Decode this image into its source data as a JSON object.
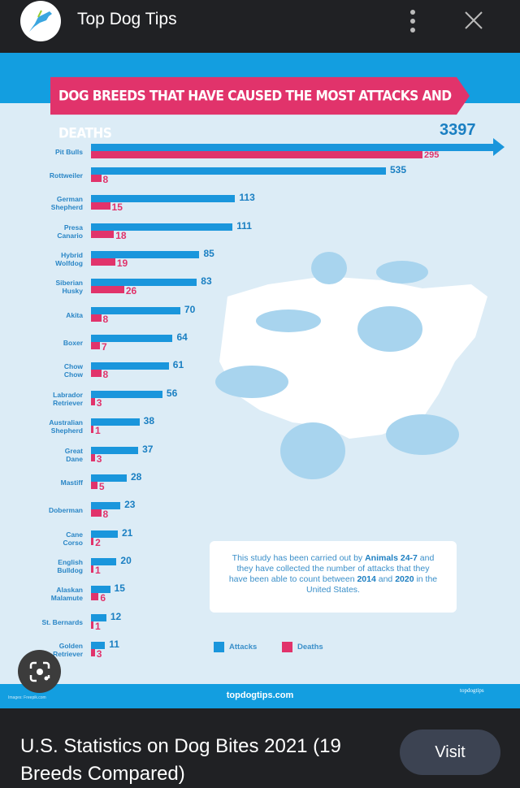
{
  "header": {
    "site_name": "Top Dog Tips",
    "more_icon": "more-vert-icon",
    "close_icon": "close-icon"
  },
  "chart_data": {
    "type": "bar",
    "orientation": "horizontal",
    "title": "DOG BREEDS THAT HAVE CAUSED THE MOST ATTACKS AND DEATHS",
    "categories": [
      "Pit Bulls",
      "Rottweiler",
      "German Shepherd",
      "Presa Canario",
      "Hybrid Wolfdog",
      "Siberian Husky",
      "Akita",
      "Boxer",
      "Chow Chow",
      "Labrador Retriever",
      "Australian Shepherd",
      "Great Dane",
      "Mastiff",
      "Doberman",
      "Cane Corso",
      "English Bulldog",
      "Alaskan Malamute",
      "St. Bernards",
      "Golden Retriever"
    ],
    "series": [
      {
        "name": "Attacks",
        "color": "#1a96dc",
        "values": [
          3397,
          535,
          113,
          111,
          85,
          83,
          70,
          64,
          61,
          56,
          38,
          37,
          28,
          23,
          21,
          20,
          15,
          12,
          11
        ]
      },
      {
        "name": "Deaths",
        "color": "#e1336b",
        "values": [
          295,
          8,
          15,
          18,
          19,
          26,
          8,
          7,
          8,
          3,
          1,
          3,
          5,
          8,
          2,
          1,
          6,
          1,
          3
        ]
      }
    ],
    "legend": "bottom-center",
    "grid": false
  },
  "note": {
    "p1": "This study has been carried out by ",
    "b1": "Animals 24-7",
    "p2": " and they have collected the number of attacks that they have been able to count between ",
    "b2": "2014",
    "p3": " and ",
    "b3": "2020",
    "p4": " in the United States."
  },
  "footer": {
    "site": "topdogtips.com",
    "credit": "Images: Freepik.com",
    "logo": "topdogtips"
  },
  "caption": "U.S. Statistics on Dog Bites 2021 (19 Breeds Compared)",
  "visit_label": "Visit",
  "lens_icon": "google-lens-icon"
}
